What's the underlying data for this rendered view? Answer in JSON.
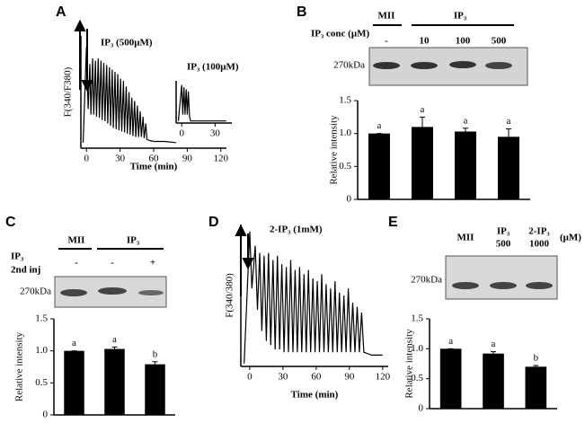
{
  "figure": {
    "panel_labels": [
      "A",
      "B",
      "C",
      "D",
      "E"
    ]
  },
  "blots": {
    "B": {
      "headers": [
        "MII",
        "IP₃"
      ],
      "row_label": "IP₃ conc (μM)",
      "lanes": [
        "-",
        "10",
        "100",
        "500"
      ],
      "marker": "270kDa"
    },
    "C": {
      "headers": [
        "MII",
        "IP₃"
      ],
      "row_labels": [
        "IP₃",
        "2nd inj"
      ],
      "lanes": [
        "-",
        "-",
        "+"
      ],
      "marker": "270kDa"
    },
    "E": {
      "lanes": [
        [
          "MII"
        ],
        [
          "IP₃",
          "500"
        ],
        [
          "2-IP₃",
          "1000"
        ]
      ],
      "unit": "(μM)",
      "marker": "270kDa"
    }
  },
  "chart_data": [
    {
      "type": "line",
      "title": "IP₃ (500μM)",
      "y_label": "F(340/F380)",
      "x_label": "Time (min)",
      "color": "#000000",
      "x": [
        -3,
        0,
        1.5,
        3,
        4,
        5.5,
        6.5,
        8,
        9,
        10.5,
        11.5,
        13,
        14,
        15.5,
        16.5,
        18,
        19,
        20.5,
        21.5,
        23,
        24,
        25.5,
        26.5,
        28,
        29,
        30.5,
        31.5,
        33,
        34,
        35.5,
        36.5,
        38,
        39,
        40.5,
        41.5,
        43,
        44,
        45.5,
        46.5,
        48,
        49,
        50.5,
        51.5,
        53,
        54,
        56,
        60,
        70,
        80
      ],
      "values": [
        0.05,
        0.9,
        0.35,
        0.75,
        0.3,
        0.8,
        0.3,
        0.78,
        0.28,
        0.8,
        0.27,
        0.78,
        0.25,
        0.76,
        0.24,
        0.74,
        0.22,
        0.72,
        0.2,
        0.7,
        0.18,
        0.68,
        0.17,
        0.66,
        0.16,
        0.62,
        0.15,
        0.6,
        0.14,
        0.55,
        0.13,
        0.5,
        0.12,
        0.45,
        0.11,
        0.42,
        0.1,
        0.38,
        0.1,
        0.33,
        0.1,
        0.28,
        0.09,
        0.22,
        0.08,
        0.07,
        0.06,
        0.06,
        0.05
      ],
      "xlim": [
        -5,
        125
      ],
      "xticks": [
        0,
        30,
        60,
        90,
        120
      ],
      "ylim": [
        0,
        1
      ]
    },
    {
      "type": "line",
      "title": "IP₃ (100μM)",
      "color": "#000000",
      "x": [
        -3,
        0,
        1,
        2,
        3,
        4,
        5,
        6,
        7,
        8,
        20,
        40
      ],
      "values": [
        0.05,
        0.9,
        0.2,
        0.85,
        0.2,
        0.8,
        0.2,
        0.75,
        0.15,
        0.05,
        0.05,
        0.05
      ],
      "xlim": [
        -5,
        45
      ],
      "xticks": [
        0,
        30
      ],
      "ylim": [
        0,
        1
      ]
    },
    {
      "type": "bar",
      "y_label": "Relative intensity",
      "color": "#000000",
      "values": [
        1.0,
        1.1,
        1.03,
        0.95
      ],
      "errors": [
        0,
        0.15,
        0.05,
        0.12
      ],
      "annotations": [
        "a",
        "a",
        "a",
        "a"
      ],
      "ylim": [
        0,
        1.5
      ],
      "yticks": [
        0,
        0.5,
        {
          "value": 1,
          "label": "1.0"
        },
        1.5
      ]
    },
    {
      "type": "bar",
      "y_label": "Relative intensity",
      "color": "#000000",
      "values": [
        1.0,
        1.03,
        0.79
      ],
      "errors": [
        0,
        0.03,
        0.04
      ],
      "annotations": [
        "a",
        "a",
        "b"
      ],
      "ylim": [
        0,
        1.5
      ],
      "yticks": [
        0,
        0.5,
        {
          "value": 1,
          "label": "1.0"
        },
        1.5
      ]
    },
    {
      "type": "line",
      "title": "2-IP₃ (1mM)",
      "y_label": "F(340/380)",
      "x_label": "Time (min)",
      "color": "#000000",
      "x": [
        -5,
        0,
        2,
        5,
        7,
        9,
        11,
        13,
        15,
        17,
        19,
        21,
        23,
        25,
        27,
        29,
        31,
        33,
        35,
        37,
        39,
        41,
        43,
        45,
        47,
        49,
        51,
        53,
        55,
        57,
        59,
        61,
        63,
        65,
        67,
        69,
        71,
        73,
        75,
        77,
        79,
        81,
        83,
        85,
        87,
        89,
        91,
        93,
        95,
        97,
        99,
        101,
        103,
        110,
        120
      ],
      "values": [
        0.02,
        0.95,
        0.55,
        0.85,
        0.4,
        0.8,
        0.25,
        0.78,
        0.18,
        0.8,
        0.15,
        0.75,
        0.12,
        0.78,
        0.12,
        0.72,
        0.1,
        0.7,
        0.1,
        0.75,
        0.1,
        0.68,
        0.1,
        0.7,
        0.1,
        0.65,
        0.1,
        0.68,
        0.1,
        0.62,
        0.1,
        0.6,
        0.1,
        0.65,
        0.1,
        0.58,
        0.1,
        0.55,
        0.1,
        0.6,
        0.1,
        0.52,
        0.1,
        0.5,
        0.1,
        0.55,
        0.1,
        0.45,
        0.1,
        0.42,
        0.1,
        0.38,
        0.1,
        0.08,
        0.08
      ],
      "xlim": [
        -8,
        125
      ],
      "xticks": [
        0,
        30,
        60,
        90,
        120
      ],
      "ylim": [
        0,
        1
      ]
    },
    {
      "type": "bar",
      "y_label": "Relative intensity",
      "color": "#000000",
      "values": [
        1.0,
        0.92,
        0.7
      ],
      "errors": [
        0,
        0.03,
        0.02
      ],
      "annotations": [
        "a",
        "a",
        "b"
      ],
      "ylim": [
        0,
        1.5
      ],
      "yticks": [
        0,
        0.5,
        {
          "value": 1,
          "label": "1.0"
        },
        1.5
      ]
    }
  ]
}
